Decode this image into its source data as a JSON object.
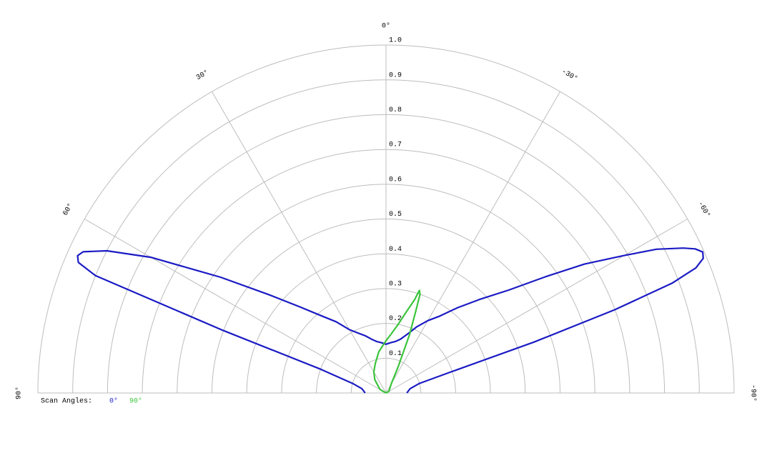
{
  "chart_data": {
    "type": "polar",
    "rlim": [
      0,
      1
    ],
    "rticks": [
      0.1,
      0.2,
      0.3,
      0.4,
      0.5,
      0.6,
      0.7,
      0.8,
      0.9,
      {
        "value": 1,
        "label": "1.0"
      }
    ],
    "thetaticks": [
      {
        "value": 90,
        "label": "90°"
      },
      {
        "value": 60,
        "label": "60°"
      },
      {
        "value": 30,
        "label": "30°"
      },
      {
        "value": 0,
        "label": "0°"
      },
      {
        "value": -30,
        "label": "-30°"
      },
      {
        "value": -60,
        "label": "-60°"
      },
      {
        "value": -90,
        "label": "-90°"
      }
    ],
    "legend_title": "Scan Angles:",
    "series": [
      {
        "name": "0°",
        "color": "#1b1bc4",
        "theta": [
          -90,
          -80,
          -74,
          -72,
          -71,
          -70,
          -69,
          -68,
          -67,
          -66,
          -65,
          -64,
          -62,
          -60,
          -57,
          -54,
          -50,
          -45,
          -40,
          -35,
          -30,
          -25,
          -20,
          -15,
          -10,
          -5,
          0,
          5,
          10,
          15,
          20,
          25,
          30,
          35,
          40,
          45,
          50,
          55,
          60,
          63,
          65,
          66,
          67,
          68,
          69,
          70,
          74,
          80,
          90
        ],
        "values": [
          0.06,
          0.07,
          0.1,
          0.2,
          0.45,
          0.7,
          0.88,
          0.96,
          0.99,
          0.996,
          0.98,
          0.95,
          0.88,
          0.79,
          0.68,
          0.57,
          0.46,
          0.38,
          0.32,
          0.27,
          0.24,
          0.21,
          0.18,
          0.16,
          0.15,
          0.145,
          0.14,
          0.145,
          0.15,
          0.16,
          0.175,
          0.19,
          0.21,
          0.25,
          0.29,
          0.35,
          0.44,
          0.58,
          0.78,
          0.9,
          0.96,
          0.97,
          0.96,
          0.9,
          0.5,
          0.2,
          0.1,
          0.07,
          0.06
        ]
      },
      {
        "name": "90°",
        "color": "#3cc43c",
        "theta": [
          -90,
          -60,
          -30,
          -25,
          -22,
          -20,
          -19,
          -18,
          -17,
          -14,
          -10,
          -5,
          0,
          10,
          20,
          30,
          40,
          60,
          90
        ],
        "values": [
          0,
          0.01,
          0.03,
          0.08,
          0.18,
          0.25,
          0.3,
          0.31,
          0.28,
          0.24,
          0.2,
          0.17,
          0.15,
          0.12,
          0.09,
          0.07,
          0.05,
          0.02,
          0
        ]
      }
    ]
  }
}
